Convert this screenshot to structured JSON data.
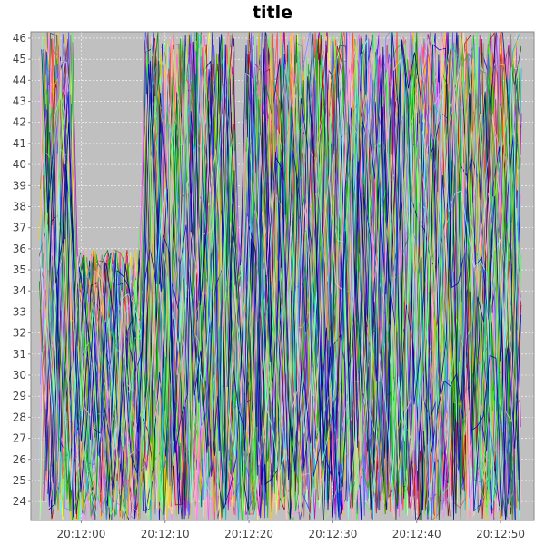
{
  "chart_data": {
    "type": "line",
    "title": "title",
    "xlabel": "",
    "ylabel": "",
    "x_ticks": [
      "20:12:00",
      "20:12:10",
      "20:12:20",
      "20:12:30",
      "20:12:40",
      "20:12:50"
    ],
    "x_tick_seconds": [
      0,
      10,
      20,
      30,
      40,
      50
    ],
    "xlim_seconds": [
      -6,
      54
    ],
    "y_ticks": [
      24,
      25,
      26,
      27,
      28,
      29,
      30,
      31,
      32,
      33,
      34,
      35,
      36,
      37,
      38,
      39,
      40,
      41,
      42,
      43,
      44,
      45,
      46
    ],
    "ylim": [
      23.1,
      46.3
    ],
    "grid": true,
    "legend": "none",
    "series_note": "",
    "colors": {
      "plot_background": "#c0c0c0",
      "grid": "#ffffff",
      "axis": "#888888",
      "palette": [
        "#ff5555",
        "#5555ff",
        "#55ff55",
        "#ffff55",
        "#ff55ff",
        "#55ffff",
        "#ffafaf",
        "#808080",
        "#c00000",
        "#0000c0",
        "#00c000",
        "#c0c000",
        "#c000c0",
        "#00c0c0",
        "#404040",
        "#ff4040",
        "#4040ff",
        "#40ff40",
        "#ffc800",
        "#ff80ff",
        "#80ffff",
        "#ff8080",
        "#8080ff",
        "#80ff80",
        "#000080",
        "#800000",
        "#008000",
        "#c0ffc0",
        "#ffc0c0",
        "#c0c0ff"
      ]
    }
  }
}
